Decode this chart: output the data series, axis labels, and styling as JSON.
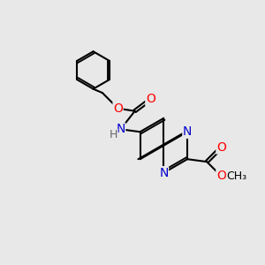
{
  "bg_color": "#e8e8e8",
  "bond_color": "#000000",
  "N_color": "#0000cd",
  "O_color": "#ff0000",
  "bond_width": 1.5,
  "dbo": 0.055,
  "fs": 10,
  "xlim": [
    0,
    10
  ],
  "ylim": [
    0,
    10
  ]
}
